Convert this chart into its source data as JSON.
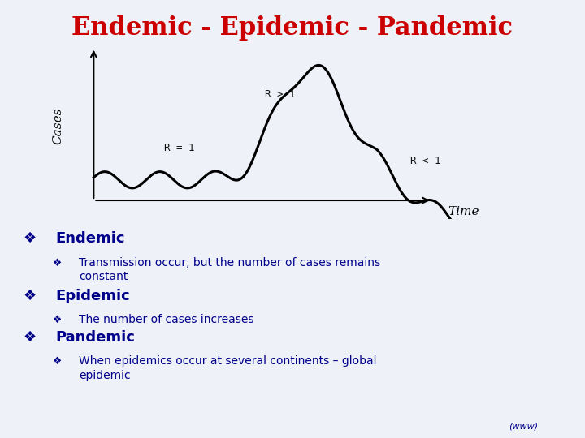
{
  "title": "Endemic - Epidemic - Pandemic",
  "title_color": "#CC0000",
  "title_fontsize": 22,
  "title_fontweight": "bold",
  "title_fontfamily": "serif",
  "bg_color": "#EEF2F8",
  "curve_color": "#000000",
  "curve_linewidth": 2.2,
  "axis_color": "#000000",
  "label_cases": "Cases",
  "label_time": "Time",
  "label_r1": "R = 1",
  "label_rg1": "R > 1",
  "label_rl1": "R < 1",
  "bullet_color": "#00008B",
  "bullet_items": [
    {
      "level": 0,
      "text": "Endemic",
      "bold": true
    },
    {
      "level": 1,
      "text": "Transmission occur, but the number of cases remains\nconstant",
      "bold": false
    },
    {
      "level": 0,
      "text": "Epidemic",
      "bold": true
    },
    {
      "level": 1,
      "text": "The number of cases increases",
      "bold": false
    },
    {
      "level": 0,
      "text": "Pandemic",
      "bold": true
    },
    {
      "level": 1,
      "text": "When epidemics occur at several continents – global\nepidemic",
      "bold": false
    }
  ],
  "www_text": "(www)",
  "www_color": "#00008B",
  "www_fontsize": 8
}
